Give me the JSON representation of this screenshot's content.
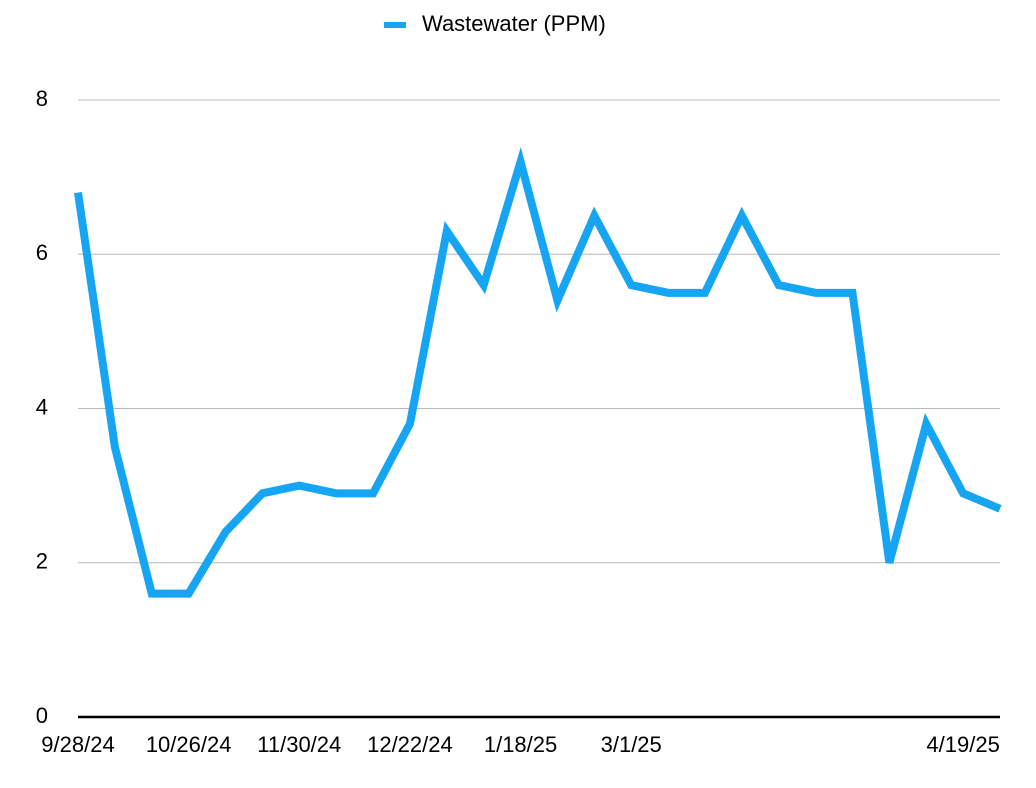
{
  "chart_data": {
    "type": "line",
    "categories": [
      "9/28/24",
      null,
      null,
      "10/26/24",
      null,
      null,
      "11/30/24",
      null,
      null,
      "12/22/24",
      null,
      null,
      "1/18/25",
      null,
      null,
      "3/1/25",
      null,
      null,
      null,
      null,
      null,
      null,
      null,
      null,
      "4/19/25",
      null
    ],
    "series": [
      {
        "name": "Wastewater (PPM)",
        "color": "#16a5f2",
        "values": [
          6.8,
          3.5,
          1.6,
          1.6,
          2.4,
          2.9,
          3.0,
          2.9,
          2.9,
          3.8,
          6.3,
          5.6,
          7.2,
          5.4,
          6.5,
          5.6,
          5.5,
          5.5,
          6.5,
          5.6,
          5.5,
          5.5,
          2.0,
          3.8,
          2.9,
          2.7
        ]
      }
    ],
    "ylim": [
      0,
      8
    ],
    "yticks": [
      0,
      2,
      4,
      6,
      8
    ],
    "grid": true,
    "legend": "top"
  }
}
